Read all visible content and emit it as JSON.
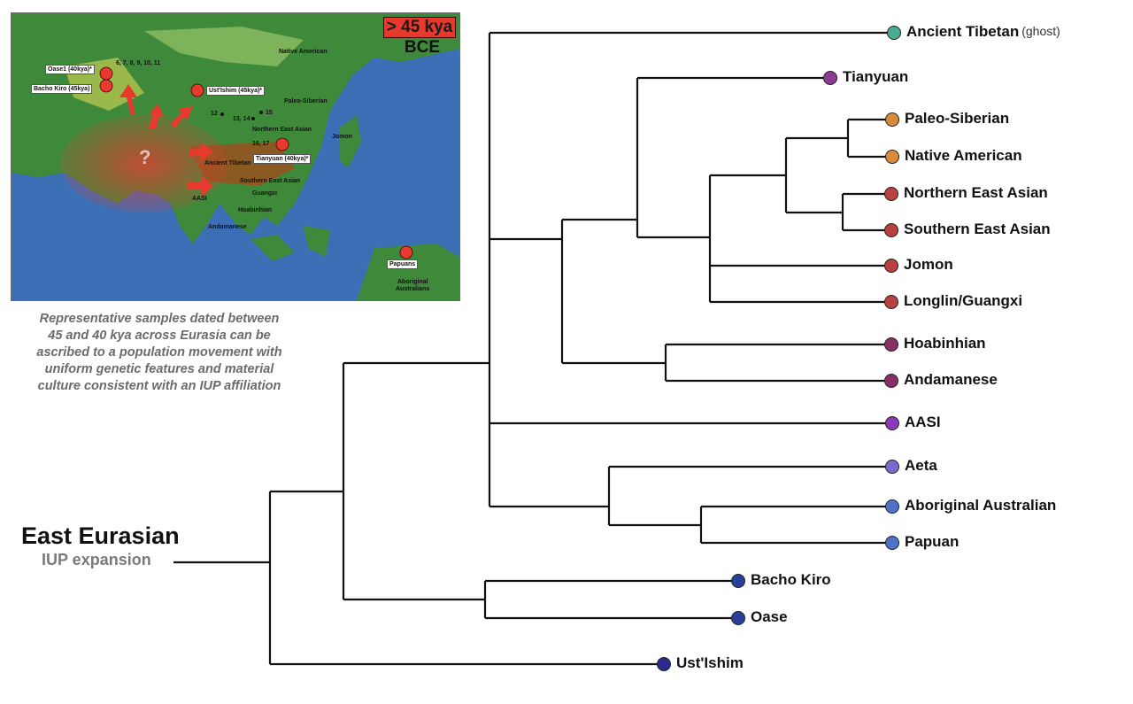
{
  "map": {
    "badge": "> 45 kya",
    "era": "BCE",
    "labels": {
      "site_numbers_top": "6, 7, 8, 9, 10, 11",
      "native_american": "Native American",
      "paleo_siberian": "Paleo-Siberian",
      "site_12": "12",
      "site_13_14": "13, 14",
      "site_15": "15",
      "northern_east_asian": "Northern East Asian",
      "jomon": "Jomon",
      "site_16_17": "16, 17",
      "ancient_tibetan": "Ancient Tibetan",
      "southern_east_asian": "Southern East Asian",
      "aasi": "AASI",
      "guangxi": "Guangxi",
      "hoabinhian": "Hoabinhian",
      "andamanese": "Andamanese",
      "aboriginal_1": "Aboriginal",
      "aboriginal_2": "Australians",
      "question_mark": "?"
    },
    "samples": {
      "oase": "Oase1 (40kya)*",
      "bacho_kiro": "Bacho Kiro (45kya)",
      "ust_ishim": "Ust'Ishim (45kya)*",
      "tianyuan": "Tianyuan (40kya)*",
      "papuans": "Papuans"
    },
    "colors": {
      "ocean": "#3b6fb5",
      "land": "#3f8a3a",
      "arrows": "#e8392f"
    }
  },
  "caption": {
    "lines": [
      "Representative samples dated between",
      "45 and 40 kya across Eurasia can be",
      "ascribed to a population movement with",
      "uniform genetic features and material",
      "culture consistent with an IUP affiliation"
    ]
  },
  "root": {
    "title": "East Eurasian",
    "subtitle": "IUP expansion"
  },
  "leaves": [
    {
      "id": "ancient-tibetan",
      "label": "Ancient Tibetan",
      "note": "(ghost)",
      "color": "#4aaa92"
    },
    {
      "id": "tianyuan",
      "label": "Tianyuan",
      "note": "",
      "color": "#8a3c90"
    },
    {
      "id": "paleo-siberian",
      "label": "Paleo-Siberian",
      "note": "",
      "color": "#d98a3c"
    },
    {
      "id": "native-american",
      "label": "Native American",
      "note": "",
      "color": "#d98a3c"
    },
    {
      "id": "northern-east-asian",
      "label": "Northern East Asian",
      "note": "",
      "color": "#b8403e"
    },
    {
      "id": "southern-east-asian",
      "label": "Southern East Asian",
      "note": "",
      "color": "#b8403e"
    },
    {
      "id": "jomon",
      "label": "Jomon",
      "note": "",
      "color": "#b8403e"
    },
    {
      "id": "longlin-guangxi",
      "label": "Longlin/Guangxi",
      "note": "",
      "color": "#b8403e"
    },
    {
      "id": "hoabinhian",
      "label": "Hoabinhian",
      "note": "",
      "color": "#8a2f66"
    },
    {
      "id": "andamanese",
      "label": "Andamanese",
      "note": "",
      "color": "#8a2f66"
    },
    {
      "id": "aasi",
      "label": "AASI",
      "note": "",
      "color": "#8a3ab8"
    },
    {
      "id": "aeta",
      "label": "Aeta",
      "note": "",
      "color": "#7a6ad0"
    },
    {
      "id": "aboriginal-australian",
      "label": "Aboriginal Australian",
      "note": "",
      "color": "#4f72c8"
    },
    {
      "id": "papuan",
      "label": "Papuan",
      "note": "",
      "color": "#4f72c8"
    },
    {
      "id": "bacho-kiro",
      "label": "Bacho Kiro",
      "note": "",
      "color": "#2a3f98"
    },
    {
      "id": "oase",
      "label": "Oase",
      "note": "",
      "color": "#2a3f98"
    },
    {
      "id": "ust-ishim",
      "label": "Ust'Ishim",
      "note": "",
      "color": "#2a2a8a"
    }
  ]
}
